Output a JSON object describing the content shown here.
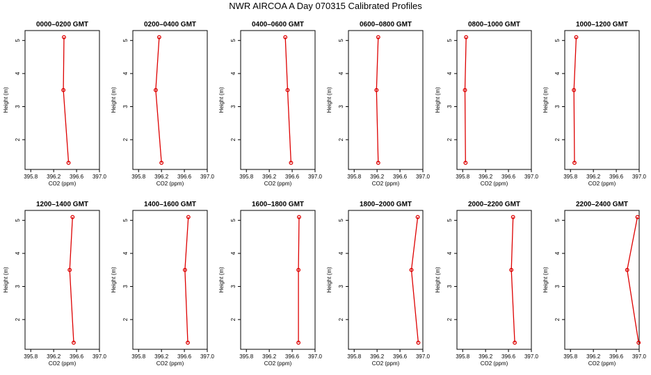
{
  "figure": {
    "title": "NWR AIRCOA A  Day 070315  Calibrated Profiles",
    "series_color": "#dd0000"
  },
  "chart_data": [
    {
      "type": "line",
      "title": "0000–0200 GMT",
      "xlabel": "CO2 (ppm)",
      "ylabel": "Height (m)",
      "xlim": [
        395.7,
        397.0
      ],
      "ylim": [
        1.1,
        5.3
      ],
      "xticks": [
        395.8,
        396.2,
        396.6,
        397.0
      ],
      "yticks": [
        2,
        3,
        4,
        5
      ],
      "x_tick_labels": [
        "395.8",
        "396.2",
        "396.6",
        "397.0"
      ],
      "y_tick_labels": [
        "2",
        "3",
        "4",
        "5"
      ],
      "series": [
        {
          "x": [
            396.46,
            396.37,
            396.38
          ],
          "y": [
            1.3,
            3.5,
            5.1
          ]
        }
      ]
    },
    {
      "type": "line",
      "title": "0200–0400 GMT",
      "xlabel": "CO2 (ppm)",
      "ylabel": "Height (m)",
      "xlim": [
        395.7,
        397.0
      ],
      "ylim": [
        1.1,
        5.3
      ],
      "xticks": [
        395.8,
        396.2,
        396.6,
        397.0
      ],
      "yticks": [
        2,
        3,
        4,
        5
      ],
      "x_tick_labels": [
        "395.8",
        "396.2",
        "396.6",
        "397.0"
      ],
      "y_tick_labels": [
        "2",
        "3",
        "4",
        "5"
      ],
      "series": [
        {
          "x": [
            396.2,
            396.1,
            396.16
          ],
          "y": [
            1.3,
            3.5,
            5.1
          ]
        }
      ]
    },
    {
      "type": "line",
      "title": "0400–0600 GMT",
      "xlabel": "CO2 (ppm)",
      "ylabel": "Height (m)",
      "xlim": [
        395.7,
        397.0
      ],
      "ylim": [
        1.1,
        5.3
      ],
      "xticks": [
        395.8,
        396.2,
        396.6,
        397.0
      ],
      "yticks": [
        2,
        3,
        4,
        5
      ],
      "x_tick_labels": [
        "395.8",
        "396.2",
        "396.6",
        "397.0"
      ],
      "y_tick_labels": [
        "2",
        "3",
        "4",
        "5"
      ],
      "series": [
        {
          "x": [
            396.58,
            396.52,
            396.48
          ],
          "y": [
            1.3,
            3.5,
            5.1
          ]
        }
      ]
    },
    {
      "type": "line",
      "title": "0600–0800 GMT",
      "xlabel": "CO2 (ppm)",
      "ylabel": "Height (m)",
      "xlim": [
        395.7,
        397.0
      ],
      "ylim": [
        1.1,
        5.3
      ],
      "xticks": [
        395.8,
        396.2,
        396.6,
        397.0
      ],
      "yticks": [
        2,
        3,
        4,
        5
      ],
      "x_tick_labels": [
        "395.8",
        "396.2",
        "396.6",
        "397.0"
      ],
      "y_tick_labels": [
        "2",
        "3",
        "4",
        "5"
      ],
      "series": [
        {
          "x": [
            396.22,
            396.19,
            396.22
          ],
          "y": [
            1.3,
            3.5,
            5.1
          ]
        }
      ]
    },
    {
      "type": "line",
      "title": "0800–1000 GMT",
      "xlabel": "CO2 (ppm)",
      "ylabel": "Height (m)",
      "xlim": [
        395.7,
        397.0
      ],
      "ylim": [
        1.1,
        5.3
      ],
      "xticks": [
        395.8,
        396.2,
        396.6,
        397.0
      ],
      "yticks": [
        2,
        3,
        4,
        5
      ],
      "x_tick_labels": [
        "395.8",
        "396.2",
        "396.6",
        "397.0"
      ],
      "y_tick_labels": [
        "2",
        "3",
        "4",
        "5"
      ],
      "series": [
        {
          "x": [
            395.85,
            395.84,
            395.86
          ],
          "y": [
            1.3,
            3.5,
            5.1
          ]
        }
      ]
    },
    {
      "type": "line",
      "title": "1000–1200 GMT",
      "xlabel": "CO2 (ppm)",
      "ylabel": "Height (m)",
      "xlim": [
        395.7,
        397.0
      ],
      "ylim": [
        1.1,
        5.3
      ],
      "xticks": [
        395.8,
        396.2,
        396.6,
        397.0
      ],
      "yticks": [
        2,
        3,
        4,
        5
      ],
      "x_tick_labels": [
        "395.8",
        "396.2",
        "396.6",
        "397.0"
      ],
      "y_tick_labels": [
        "2",
        "3",
        "4",
        "5"
      ],
      "series": [
        {
          "x": [
            395.87,
            395.86,
            395.9
          ],
          "y": [
            1.3,
            3.5,
            5.1
          ]
        }
      ]
    },
    {
      "type": "line",
      "title": "1200–1400 GMT",
      "xlabel": "CO2 (ppm)",
      "ylabel": "Height (m)",
      "xlim": [
        395.7,
        397.0
      ],
      "ylim": [
        1.1,
        5.3
      ],
      "xticks": [
        395.8,
        396.2,
        396.6,
        397.0
      ],
      "yticks": [
        2,
        3,
        4,
        5
      ],
      "x_tick_labels": [
        "395.8",
        "396.2",
        "396.6",
        "397.0"
      ],
      "y_tick_labels": [
        "2",
        "3",
        "4",
        "5"
      ],
      "series": [
        {
          "x": [
            396.55,
            396.48,
            396.53
          ],
          "y": [
            1.3,
            3.5,
            5.1
          ]
        }
      ]
    },
    {
      "type": "line",
      "title": "1400–1600 GMT",
      "xlabel": "CO2 (ppm)",
      "ylabel": "Height (m)",
      "xlim": [
        395.7,
        397.0
      ],
      "ylim": [
        1.1,
        5.3
      ],
      "xticks": [
        395.8,
        396.2,
        396.6,
        397.0
      ],
      "yticks": [
        2,
        3,
        4,
        5
      ],
      "x_tick_labels": [
        "395.8",
        "396.2",
        "396.6",
        "397.0"
      ],
      "y_tick_labels": [
        "2",
        "3",
        "4",
        "5"
      ],
      "series": [
        {
          "x": [
            396.66,
            396.61,
            396.67
          ],
          "y": [
            1.3,
            3.5,
            5.1
          ]
        }
      ]
    },
    {
      "type": "line",
      "title": "1600–1800 GMT",
      "xlabel": "CO2 (ppm)",
      "ylabel": "Height (m)",
      "xlim": [
        395.7,
        397.0
      ],
      "ylim": [
        1.1,
        5.3
      ],
      "xticks": [
        395.8,
        396.2,
        396.6,
        397.0
      ],
      "yticks": [
        2,
        3,
        4,
        5
      ],
      "x_tick_labels": [
        "395.8",
        "396.2",
        "396.6",
        "397.0"
      ],
      "y_tick_labels": [
        "2",
        "3",
        "4",
        "5"
      ],
      "series": [
        {
          "x": [
            396.71,
            396.71,
            396.72
          ],
          "y": [
            1.3,
            3.5,
            5.1
          ]
        }
      ]
    },
    {
      "type": "line",
      "title": "1800–2000 GMT",
      "xlabel": "CO2 (ppm)",
      "ylabel": "Height (m)",
      "xlim": [
        395.7,
        397.0
      ],
      "ylim": [
        1.1,
        5.3
      ],
      "xticks": [
        395.8,
        396.2,
        396.6,
        397.0
      ],
      "yticks": [
        2,
        3,
        4,
        5
      ],
      "x_tick_labels": [
        "395.8",
        "396.2",
        "396.6",
        "397.0"
      ],
      "y_tick_labels": [
        "2",
        "3",
        "4",
        "5"
      ],
      "series": [
        {
          "x": [
            396.92,
            396.8,
            396.91
          ],
          "y": [
            1.3,
            3.5,
            5.1
          ]
        }
      ]
    },
    {
      "type": "line",
      "title": "2000–2200 GMT",
      "xlabel": "CO2 (ppm)",
      "ylabel": "Height (m)",
      "xlim": [
        395.7,
        397.0
      ],
      "ylim": [
        1.1,
        5.3
      ],
      "xticks": [
        395.8,
        396.2,
        396.6,
        397.0
      ],
      "yticks": [
        2,
        3,
        4,
        5
      ],
      "x_tick_labels": [
        "395.8",
        "396.2",
        "396.6",
        "397.0"
      ],
      "y_tick_labels": [
        "2",
        "3",
        "4",
        "5"
      ],
      "series": [
        {
          "x": [
            396.71,
            396.65,
            396.68
          ],
          "y": [
            1.3,
            3.5,
            5.1
          ]
        }
      ]
    },
    {
      "type": "line",
      "title": "2200–2400 GMT",
      "xlabel": "CO2 (ppm)",
      "ylabel": "Height (m)",
      "xlim": [
        395.7,
        397.0
      ],
      "ylim": [
        1.1,
        5.3
      ],
      "xticks": [
        395.8,
        396.2,
        396.6,
        397.0
      ],
      "yticks": [
        2,
        3,
        4,
        5
      ],
      "x_tick_labels": [
        "395.8",
        "396.2",
        "396.6",
        "397.0"
      ],
      "y_tick_labels": [
        "2",
        "3",
        "4",
        "5"
      ],
      "series": [
        {
          "x": [
            396.99,
            396.79,
            396.97
          ],
          "y": [
            1.3,
            3.5,
            5.1
          ]
        }
      ]
    }
  ]
}
